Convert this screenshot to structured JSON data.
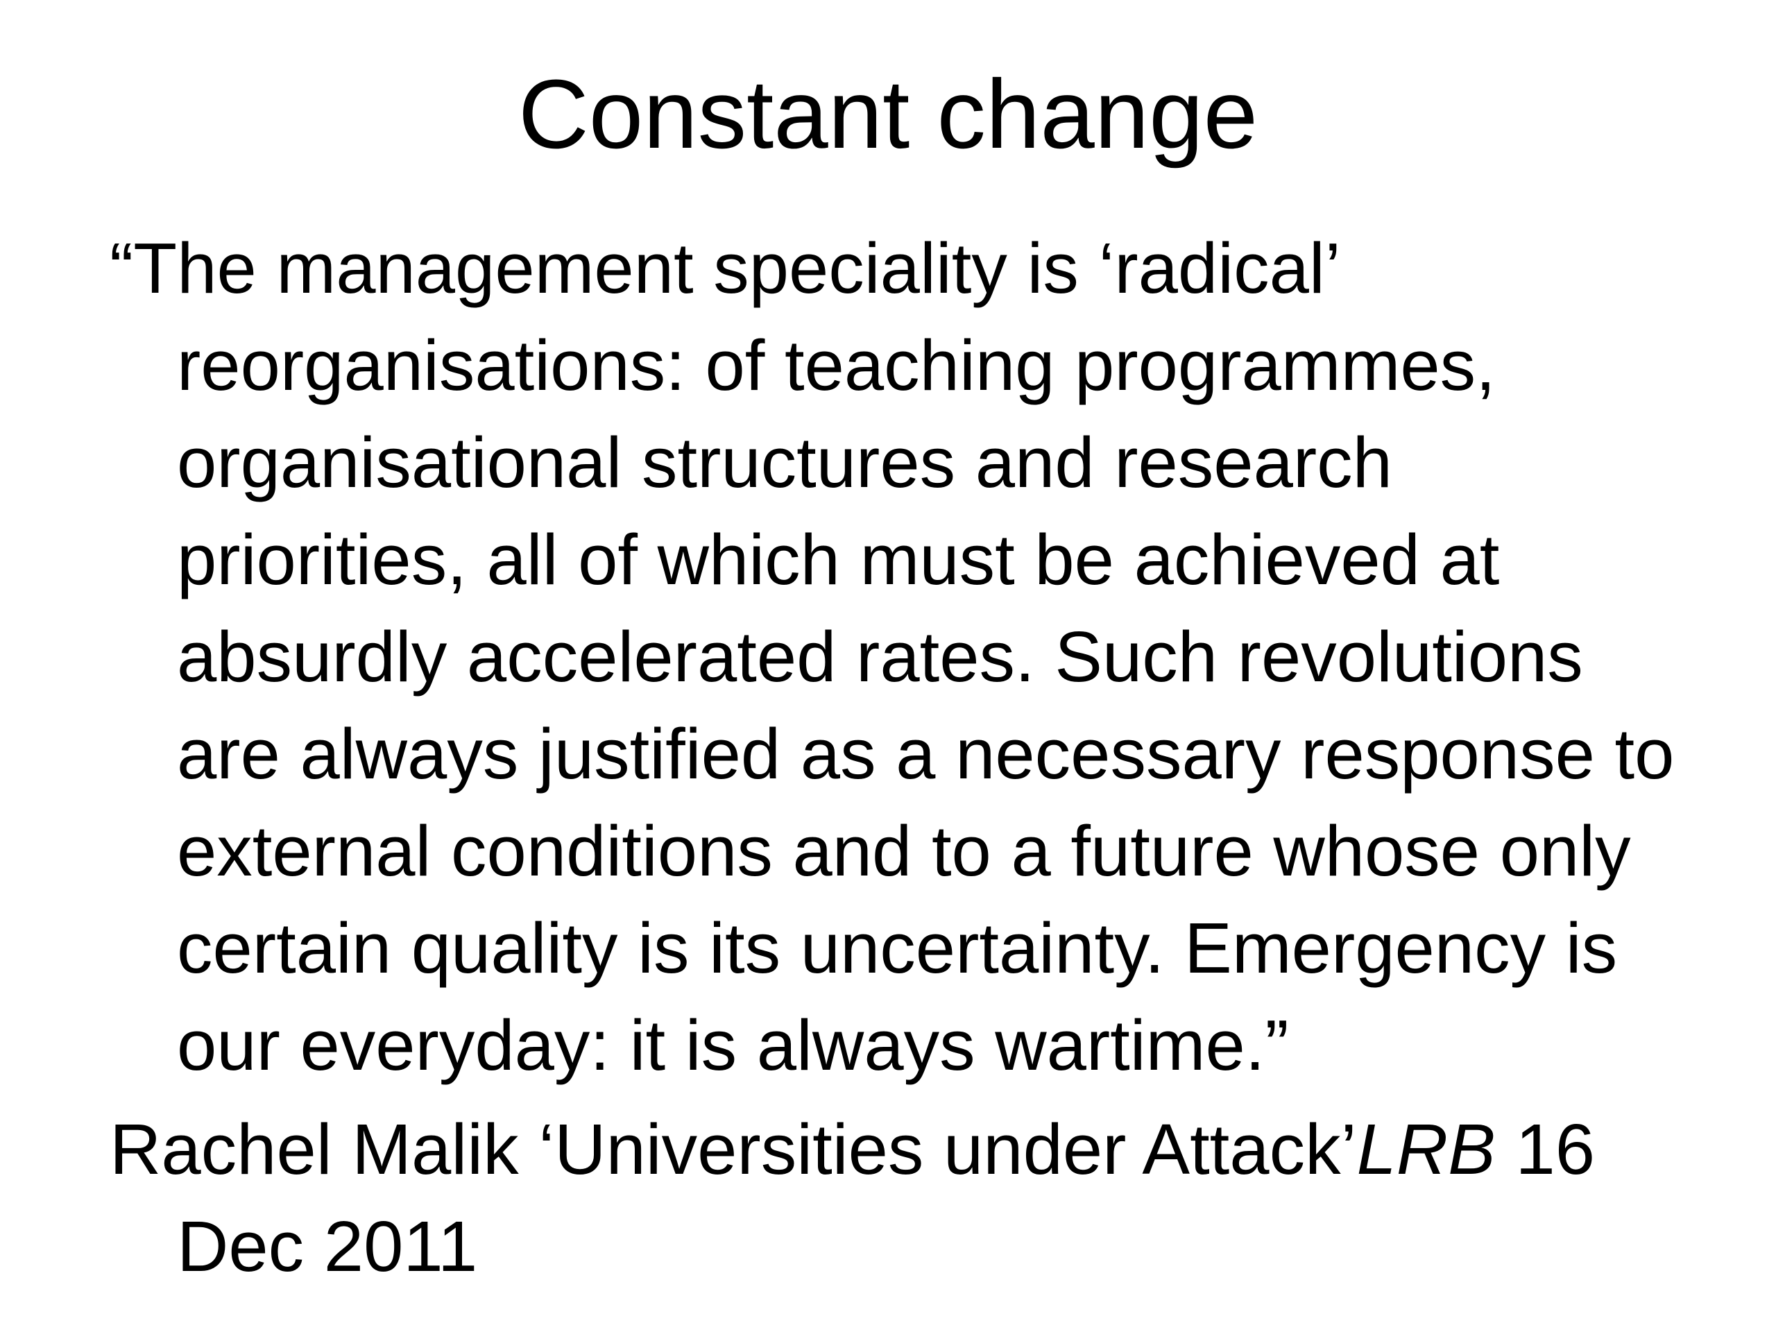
{
  "slide": {
    "background_color": "#ffffff",
    "text_color": "#000000",
    "title": "Constant change",
    "quote": {
      "lines": [
        "“The management speciality is ‘radical’",
        "reorganisations: of teaching programmes,",
        "organisational structures and research",
        "priorities, all of which must be achieved at",
        "absurdly accelerated rates. Such revolutions",
        "are always justified as a necessary response to",
        "external conditions and to a future whose only",
        "certain quality is its uncertainty. Emergency is",
        "our everyday: it is always wartime.”"
      ]
    },
    "attribution": {
      "prefix": "Rachel Malik ‘Universities under Attack’",
      "journal": "LRB",
      "suffix": " 16",
      "date_line": "Dec 2011"
    }
  }
}
